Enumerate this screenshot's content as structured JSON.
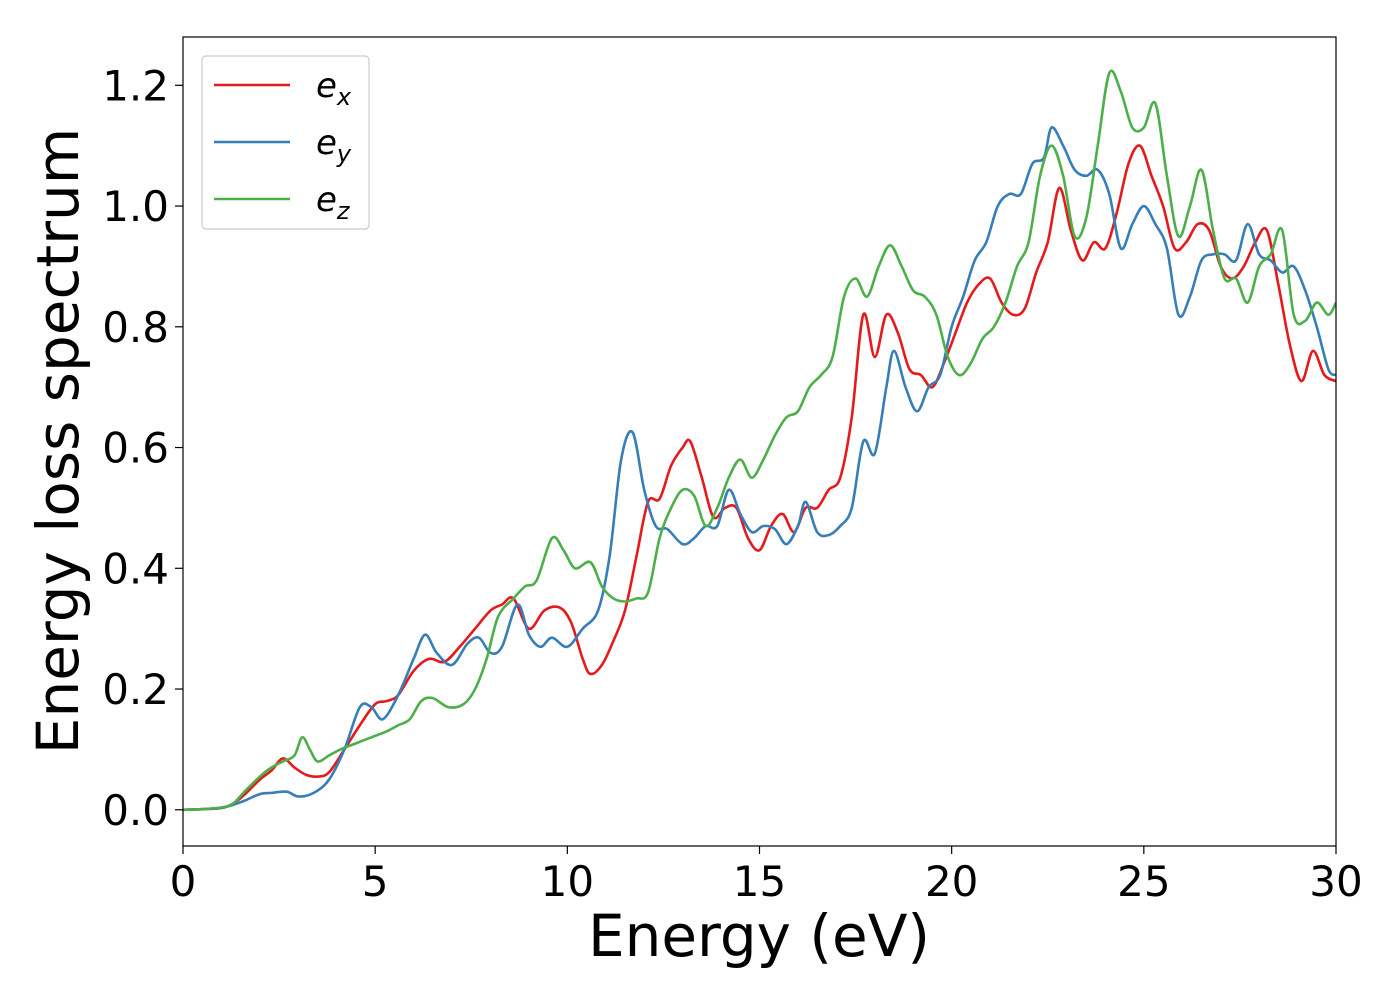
{
  "chart_data": {
    "type": "line",
    "title": "",
    "xlabel": "Energy (eV)",
    "ylabel": "Energy loss spectrum",
    "xlim": [
      0,
      30
    ],
    "ylim": [
      -0.06,
      1.28
    ],
    "xticks": [
      0,
      5,
      10,
      15,
      20,
      25,
      30
    ],
    "yticks": [
      0.0,
      0.2,
      0.4,
      0.6,
      0.8,
      1.0,
      1.2
    ],
    "xtick_labels": [
      "0",
      "5",
      "10",
      "15",
      "20",
      "25",
      "30"
    ],
    "ytick_labels": [
      "0.0",
      "0.2",
      "0.4",
      "0.6",
      "0.8",
      "1.0",
      "1.2"
    ],
    "grid": false,
    "legend_position": "upper-left",
    "series": [
      {
        "name": "e_x",
        "legend_base": "e",
        "legend_sub": "x",
        "color": "#e41a1c",
        "points": [
          [
            0,
            0.0
          ],
          [
            0.5,
            0.001
          ],
          [
            1.0,
            0.003
          ],
          [
            1.3,
            0.01
          ],
          [
            1.6,
            0.025
          ],
          [
            2.0,
            0.05
          ],
          [
            2.3,
            0.065
          ],
          [
            2.6,
            0.085
          ],
          [
            2.9,
            0.07
          ],
          [
            3.2,
            0.058
          ],
          [
            3.5,
            0.055
          ],
          [
            3.8,
            0.062
          ],
          [
            4.2,
            0.1
          ],
          [
            4.6,
            0.14
          ],
          [
            5.0,
            0.175
          ],
          [
            5.3,
            0.18
          ],
          [
            5.6,
            0.19
          ],
          [
            6.0,
            0.23
          ],
          [
            6.4,
            0.25
          ],
          [
            6.8,
            0.245
          ],
          [
            7.2,
            0.27
          ],
          [
            7.6,
            0.3
          ],
          [
            8.0,
            0.33
          ],
          [
            8.3,
            0.34
          ],
          [
            8.6,
            0.35
          ],
          [
            9.0,
            0.3
          ],
          [
            9.4,
            0.33
          ],
          [
            9.8,
            0.335
          ],
          [
            10.1,
            0.31
          ],
          [
            10.4,
            0.25
          ],
          [
            10.6,
            0.225
          ],
          [
            10.9,
            0.24
          ],
          [
            11.2,
            0.28
          ],
          [
            11.5,
            0.33
          ],
          [
            11.8,
            0.42
          ],
          [
            12.1,
            0.51
          ],
          [
            12.4,
            0.515
          ],
          [
            12.7,
            0.57
          ],
          [
            13.0,
            0.6
          ],
          [
            13.2,
            0.61
          ],
          [
            13.5,
            0.55
          ],
          [
            13.8,
            0.485
          ],
          [
            14.1,
            0.5
          ],
          [
            14.4,
            0.5
          ],
          [
            14.7,
            0.45
          ],
          [
            15.0,
            0.43
          ],
          [
            15.3,
            0.47
          ],
          [
            15.6,
            0.49
          ],
          [
            15.9,
            0.46
          ],
          [
            16.2,
            0.5
          ],
          [
            16.5,
            0.5
          ],
          [
            16.8,
            0.53
          ],
          [
            17.1,
            0.55
          ],
          [
            17.4,
            0.65
          ],
          [
            17.7,
            0.82
          ],
          [
            18.0,
            0.75
          ],
          [
            18.3,
            0.82
          ],
          [
            18.6,
            0.79
          ],
          [
            18.9,
            0.73
          ],
          [
            19.2,
            0.72
          ],
          [
            19.5,
            0.7
          ],
          [
            19.8,
            0.74
          ],
          [
            20.1,
            0.79
          ],
          [
            20.4,
            0.84
          ],
          [
            20.7,
            0.87
          ],
          [
            21.0,
            0.88
          ],
          [
            21.3,
            0.84
          ],
          [
            21.6,
            0.82
          ],
          [
            21.9,
            0.83
          ],
          [
            22.2,
            0.89
          ],
          [
            22.5,
            0.94
          ],
          [
            22.8,
            1.03
          ],
          [
            23.1,
            0.96
          ],
          [
            23.4,
            0.91
          ],
          [
            23.7,
            0.94
          ],
          [
            24.0,
            0.93
          ],
          [
            24.3,
            0.99
          ],
          [
            24.6,
            1.07
          ],
          [
            24.9,
            1.1
          ],
          [
            25.2,
            1.05
          ],
          [
            25.5,
            1.0
          ],
          [
            25.8,
            0.93
          ],
          [
            26.1,
            0.94
          ],
          [
            26.4,
            0.97
          ],
          [
            26.7,
            0.96
          ],
          [
            27.0,
            0.9
          ],
          [
            27.3,
            0.88
          ],
          [
            27.6,
            0.9
          ],
          [
            27.9,
            0.94
          ],
          [
            28.2,
            0.96
          ],
          [
            28.5,
            0.87
          ],
          [
            28.8,
            0.77
          ],
          [
            29.1,
            0.71
          ],
          [
            29.4,
            0.76
          ],
          [
            29.7,
            0.72
          ],
          [
            30.0,
            0.71
          ]
        ]
      },
      {
        "name": "e_y",
        "legend_base": "e",
        "legend_sub": "y",
        "color": "#377eb8",
        "points": [
          [
            0,
            0.0
          ],
          [
            0.5,
            0.001
          ],
          [
            1.0,
            0.003
          ],
          [
            1.3,
            0.008
          ],
          [
            1.6,
            0.015
          ],
          [
            2.0,
            0.026
          ],
          [
            2.3,
            0.028
          ],
          [
            2.7,
            0.03
          ],
          [
            3.0,
            0.022
          ],
          [
            3.4,
            0.028
          ],
          [
            3.8,
            0.05
          ],
          [
            4.2,
            0.1
          ],
          [
            4.6,
            0.17
          ],
          [
            4.9,
            0.17
          ],
          [
            5.2,
            0.15
          ],
          [
            5.6,
            0.19
          ],
          [
            6.0,
            0.25
          ],
          [
            6.3,
            0.29
          ],
          [
            6.6,
            0.26
          ],
          [
            7.0,
            0.24
          ],
          [
            7.4,
            0.275
          ],
          [
            7.7,
            0.285
          ],
          [
            8.0,
            0.26
          ],
          [
            8.3,
            0.27
          ],
          [
            8.7,
            0.34
          ],
          [
            9.0,
            0.29
          ],
          [
            9.3,
            0.27
          ],
          [
            9.6,
            0.285
          ],
          [
            10.0,
            0.27
          ],
          [
            10.4,
            0.3
          ],
          [
            10.8,
            0.33
          ],
          [
            11.1,
            0.42
          ],
          [
            11.4,
            0.58
          ],
          [
            11.7,
            0.625
          ],
          [
            12.0,
            0.53
          ],
          [
            12.3,
            0.47
          ],
          [
            12.6,
            0.465
          ],
          [
            13.0,
            0.44
          ],
          [
            13.3,
            0.45
          ],
          [
            13.6,
            0.47
          ],
          [
            13.9,
            0.47
          ],
          [
            14.2,
            0.53
          ],
          [
            14.5,
            0.49
          ],
          [
            14.8,
            0.46
          ],
          [
            15.1,
            0.47
          ],
          [
            15.4,
            0.465
          ],
          [
            15.7,
            0.44
          ],
          [
            16.0,
            0.47
          ],
          [
            16.2,
            0.51
          ],
          [
            16.5,
            0.46
          ],
          [
            16.8,
            0.455
          ],
          [
            17.1,
            0.47
          ],
          [
            17.4,
            0.5
          ],
          [
            17.7,
            0.61
          ],
          [
            18.0,
            0.59
          ],
          [
            18.3,
            0.7
          ],
          [
            18.5,
            0.76
          ],
          [
            18.8,
            0.7
          ],
          [
            19.1,
            0.66
          ],
          [
            19.4,
            0.7
          ],
          [
            19.7,
            0.72
          ],
          [
            20.0,
            0.8
          ],
          [
            20.3,
            0.85
          ],
          [
            20.6,
            0.91
          ],
          [
            20.9,
            0.94
          ],
          [
            21.2,
            1.0
          ],
          [
            21.5,
            1.02
          ],
          [
            21.8,
            1.02
          ],
          [
            22.1,
            1.07
          ],
          [
            22.4,
            1.08
          ],
          [
            22.6,
            1.13
          ],
          [
            22.9,
            1.1
          ],
          [
            23.2,
            1.06
          ],
          [
            23.5,
            1.05
          ],
          [
            23.8,
            1.06
          ],
          [
            24.1,
            1.02
          ],
          [
            24.4,
            0.93
          ],
          [
            24.7,
            0.97
          ],
          [
            25.0,
            1.0
          ],
          [
            25.3,
            0.97
          ],
          [
            25.6,
            0.93
          ],
          [
            25.9,
            0.82
          ],
          [
            26.2,
            0.85
          ],
          [
            26.5,
            0.91
          ],
          [
            26.8,
            0.92
          ],
          [
            27.1,
            0.92
          ],
          [
            27.4,
            0.91
          ],
          [
            27.7,
            0.97
          ],
          [
            28.0,
            0.92
          ],
          [
            28.3,
            0.91
          ],
          [
            28.6,
            0.89
          ],
          [
            28.9,
            0.9
          ],
          [
            29.2,
            0.86
          ],
          [
            29.5,
            0.8
          ],
          [
            29.8,
            0.73
          ],
          [
            30.0,
            0.72
          ]
        ]
      },
      {
        "name": "e_z",
        "legend_base": "e",
        "legend_sub": "z",
        "color": "#4daf4a",
        "points": [
          [
            0,
            0.0
          ],
          [
            0.5,
            0.001
          ],
          [
            1.0,
            0.004
          ],
          [
            1.3,
            0.01
          ],
          [
            1.6,
            0.03
          ],
          [
            2.0,
            0.055
          ],
          [
            2.3,
            0.07
          ],
          [
            2.6,
            0.08
          ],
          [
            2.9,
            0.09
          ],
          [
            3.1,
            0.12
          ],
          [
            3.3,
            0.1
          ],
          [
            3.5,
            0.08
          ],
          [
            3.8,
            0.09
          ],
          [
            4.1,
            0.1
          ],
          [
            4.5,
            0.11
          ],
          [
            4.9,
            0.12
          ],
          [
            5.3,
            0.13
          ],
          [
            5.6,
            0.14
          ],
          [
            5.9,
            0.15
          ],
          [
            6.2,
            0.18
          ],
          [
            6.5,
            0.185
          ],
          [
            6.9,
            0.17
          ],
          [
            7.3,
            0.175
          ],
          [
            7.6,
            0.2
          ],
          [
            7.9,
            0.25
          ],
          [
            8.2,
            0.32
          ],
          [
            8.6,
            0.35
          ],
          [
            8.9,
            0.37
          ],
          [
            9.2,
            0.38
          ],
          [
            9.6,
            0.45
          ],
          [
            9.9,
            0.43
          ],
          [
            10.2,
            0.4
          ],
          [
            10.6,
            0.41
          ],
          [
            10.9,
            0.37
          ],
          [
            11.2,
            0.35
          ],
          [
            11.5,
            0.345
          ],
          [
            11.8,
            0.35
          ],
          [
            12.1,
            0.36
          ],
          [
            12.4,
            0.45
          ],
          [
            12.7,
            0.5
          ],
          [
            13.0,
            0.53
          ],
          [
            13.3,
            0.52
          ],
          [
            13.6,
            0.47
          ],
          [
            13.9,
            0.5
          ],
          [
            14.2,
            0.55
          ],
          [
            14.5,
            0.58
          ],
          [
            14.8,
            0.55
          ],
          [
            15.1,
            0.58
          ],
          [
            15.4,
            0.62
          ],
          [
            15.7,
            0.65
          ],
          [
            16.0,
            0.66
          ],
          [
            16.3,
            0.7
          ],
          [
            16.6,
            0.72
          ],
          [
            16.9,
            0.75
          ],
          [
            17.2,
            0.85
          ],
          [
            17.5,
            0.88
          ],
          [
            17.8,
            0.85
          ],
          [
            18.1,
            0.9
          ],
          [
            18.4,
            0.935
          ],
          [
            18.7,
            0.9
          ],
          [
            19.0,
            0.86
          ],
          [
            19.3,
            0.85
          ],
          [
            19.6,
            0.82
          ],
          [
            19.9,
            0.75
          ],
          [
            20.2,
            0.72
          ],
          [
            20.5,
            0.74
          ],
          [
            20.8,
            0.78
          ],
          [
            21.1,
            0.8
          ],
          [
            21.4,
            0.84
          ],
          [
            21.7,
            0.9
          ],
          [
            22.0,
            0.94
          ],
          [
            22.3,
            1.05
          ],
          [
            22.6,
            1.1
          ],
          [
            22.9,
            1.05
          ],
          [
            23.2,
            0.95
          ],
          [
            23.5,
            0.98
          ],
          [
            23.8,
            1.1
          ],
          [
            24.1,
            1.22
          ],
          [
            24.4,
            1.19
          ],
          [
            24.7,
            1.13
          ],
          [
            25.0,
            1.13
          ],
          [
            25.3,
            1.17
          ],
          [
            25.6,
            1.05
          ],
          [
            25.9,
            0.95
          ],
          [
            26.2,
            1.0
          ],
          [
            26.5,
            1.06
          ],
          [
            26.8,
            0.96
          ],
          [
            27.1,
            0.88
          ],
          [
            27.4,
            0.88
          ],
          [
            27.7,
            0.84
          ],
          [
            28.0,
            0.9
          ],
          [
            28.3,
            0.92
          ],
          [
            28.6,
            0.96
          ],
          [
            28.9,
            0.82
          ],
          [
            29.2,
            0.81
          ],
          [
            29.5,
            0.84
          ],
          [
            29.8,
            0.82
          ],
          [
            30.0,
            0.84
          ]
        ]
      }
    ]
  }
}
